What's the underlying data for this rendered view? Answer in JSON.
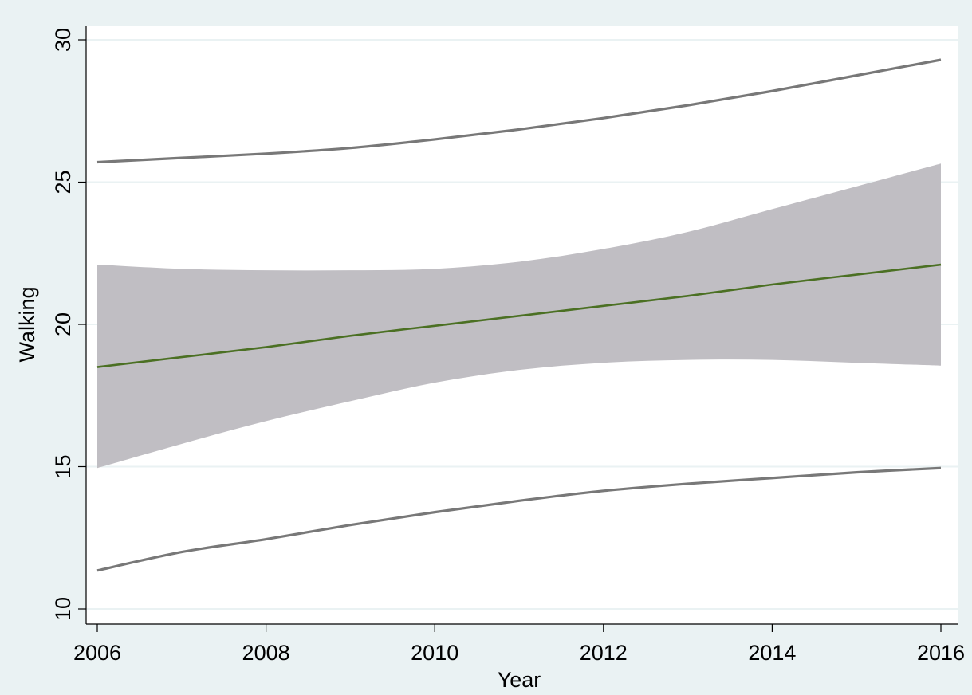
{
  "chart_data": {
    "type": "line",
    "title": "",
    "xlabel": "Year",
    "ylabel": "Walking",
    "xlim": [
      2006,
      2016
    ],
    "ylim": [
      10,
      30
    ],
    "x_ticks": [
      2006,
      2008,
      2010,
      2012,
      2014,
      2016
    ],
    "y_ticks": [
      10,
      15,
      20,
      25,
      30
    ],
    "x_tick_labels": [
      "2006",
      "2008",
      "2010",
      "2012",
      "2014",
      "2016"
    ],
    "y_tick_labels": [
      "10",
      "15",
      "20",
      "25",
      "30"
    ],
    "grid": "horizontal",
    "legend": "none",
    "x": [
      2006,
      2007,
      2008,
      2009,
      2010,
      2011,
      2012,
      2013,
      2014,
      2015,
      2016
    ],
    "series": [
      {
        "role": "fit",
        "color": "#4b7023",
        "values": [
          18.5,
          18.85,
          19.2,
          19.6,
          19.95,
          20.3,
          20.65,
          21.0,
          21.4,
          21.75,
          22.1
        ]
      },
      {
        "role": "ci-upper",
        "color": "#c0bec3",
        "values": [
          22.1,
          21.95,
          21.9,
          21.9,
          21.95,
          22.2,
          22.65,
          23.25,
          24.05,
          24.85,
          25.65
        ]
      },
      {
        "role": "ci-lower",
        "color": "#c0bec3",
        "values": [
          14.95,
          15.8,
          16.6,
          17.3,
          17.95,
          18.4,
          18.65,
          18.75,
          18.75,
          18.65,
          18.55
        ]
      },
      {
        "role": "pi-upper",
        "color": "#787878",
        "values": [
          25.7,
          25.85,
          26.0,
          26.2,
          26.5,
          26.85,
          27.25,
          27.7,
          28.2,
          28.75,
          29.3
        ]
      },
      {
        "role": "pi-lower",
        "color": "#787878",
        "values": [
          11.35,
          12.0,
          12.45,
          12.95,
          13.4,
          13.8,
          14.15,
          14.4,
          14.6,
          14.8,
          14.95
        ]
      }
    ]
  }
}
